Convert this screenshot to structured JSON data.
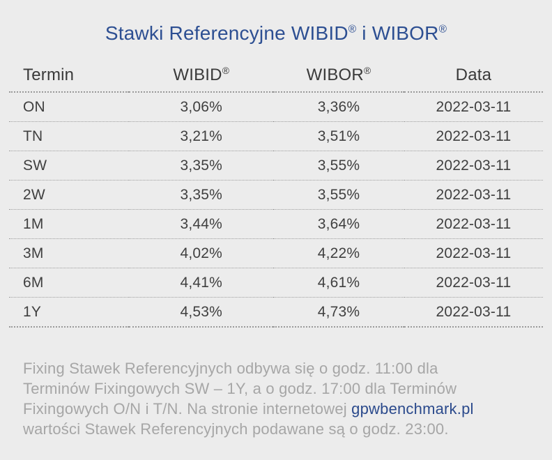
{
  "title": {
    "part1": "Stawki Referencyjne WIBID",
    "sup1": "®",
    "part2": " i WIBOR",
    "sup2": "®"
  },
  "colors": {
    "background": "#ececec",
    "title_blue": "#2d4f92",
    "header_text": "#3a3a3a",
    "cell_text": "#3f3f3f",
    "footer_gray": "#a6a6a6",
    "link_blue": "#2b4a8c",
    "separator_gray": "#999999"
  },
  "table": {
    "headers": {
      "termin": "Termin",
      "wibid": "WIBID",
      "wibid_sup": "®",
      "wibor": "WIBOR",
      "wibor_sup": "®",
      "data": "Data"
    },
    "rows": [
      {
        "termin": "ON",
        "wibid": "3,06%",
        "wibor": "3,36%",
        "data": "2022-03-11"
      },
      {
        "termin": "TN",
        "wibid": "3,21%",
        "wibor": "3,51%",
        "data": "2022-03-11"
      },
      {
        "termin": "SW",
        "wibid": "3,35%",
        "wibor": "3,55%",
        "data": "2022-03-11"
      },
      {
        "termin": "2W",
        "wibid": "3,35%",
        "wibor": "3,55%",
        "data": "2022-03-11"
      },
      {
        "termin": "1M",
        "wibid": "3,44%",
        "wibor": "3,64%",
        "data": "2022-03-11"
      },
      {
        "termin": "3M",
        "wibid": "4,02%",
        "wibor": "4,22%",
        "data": "2022-03-11"
      },
      {
        "termin": "6M",
        "wibid": "4,41%",
        "wibor": "4,61%",
        "data": "2022-03-11"
      },
      {
        "termin": "1Y",
        "wibid": "4,53%",
        "wibor": "4,73%",
        "data": "2022-03-11"
      }
    ]
  },
  "footer": {
    "line1": "Fixing Stawek Referencyjnych odbywa się o godz. 11:00 dla",
    "line2": "Terminów Fixingowych SW – 1Y, a o godz. 17:00 dla Terminów",
    "line3_before_link": "Fixingowych O/N i T/N. Na stronie internetowej ",
    "link": "gpwbenchmark.pl",
    "line4": "wartości Stawek Referencyjnych podawane są o godz. 23:00."
  },
  "chart_data": {
    "type": "table",
    "title": "Stawki Referencyjne WIBID® i WIBOR®",
    "columns": [
      "Termin",
      "WIBID®",
      "WIBOR®",
      "Data"
    ],
    "rows": [
      [
        "ON",
        "3,06%",
        "3,36%",
        "2022-03-11"
      ],
      [
        "TN",
        "3,21%",
        "3,51%",
        "2022-03-11"
      ],
      [
        "SW",
        "3,35%",
        "3,55%",
        "2022-03-11"
      ],
      [
        "2W",
        "3,35%",
        "3,55%",
        "2022-03-11"
      ],
      [
        "1M",
        "3,44%",
        "3,64%",
        "2022-03-11"
      ],
      [
        "3M",
        "4,02%",
        "4,22%",
        "2022-03-11"
      ],
      [
        "6M",
        "4,41%",
        "4,61%",
        "2022-03-11"
      ],
      [
        "1Y",
        "4,53%",
        "4,73%",
        "2022-03-11"
      ]
    ],
    "wibid_values_pct": [
      3.06,
      3.21,
      3.35,
      3.35,
      3.44,
      4.02,
      4.41,
      4.53
    ],
    "wibor_values_pct": [
      3.36,
      3.51,
      3.55,
      3.55,
      3.64,
      4.22,
      4.61,
      4.73
    ],
    "date": "2022-03-11",
    "footnote": "Fixing Stawek Referencyjnych odbywa się o godz. 11:00 dla Terminów Fixingowych SW – 1Y, a o godz. 17:00 dla Terminów Fixingowych O/N i T/N. Na stronie internetowej gpwbenchmark.pl wartości Stawek Referencyjnych podawane są o godz. 23:00."
  }
}
